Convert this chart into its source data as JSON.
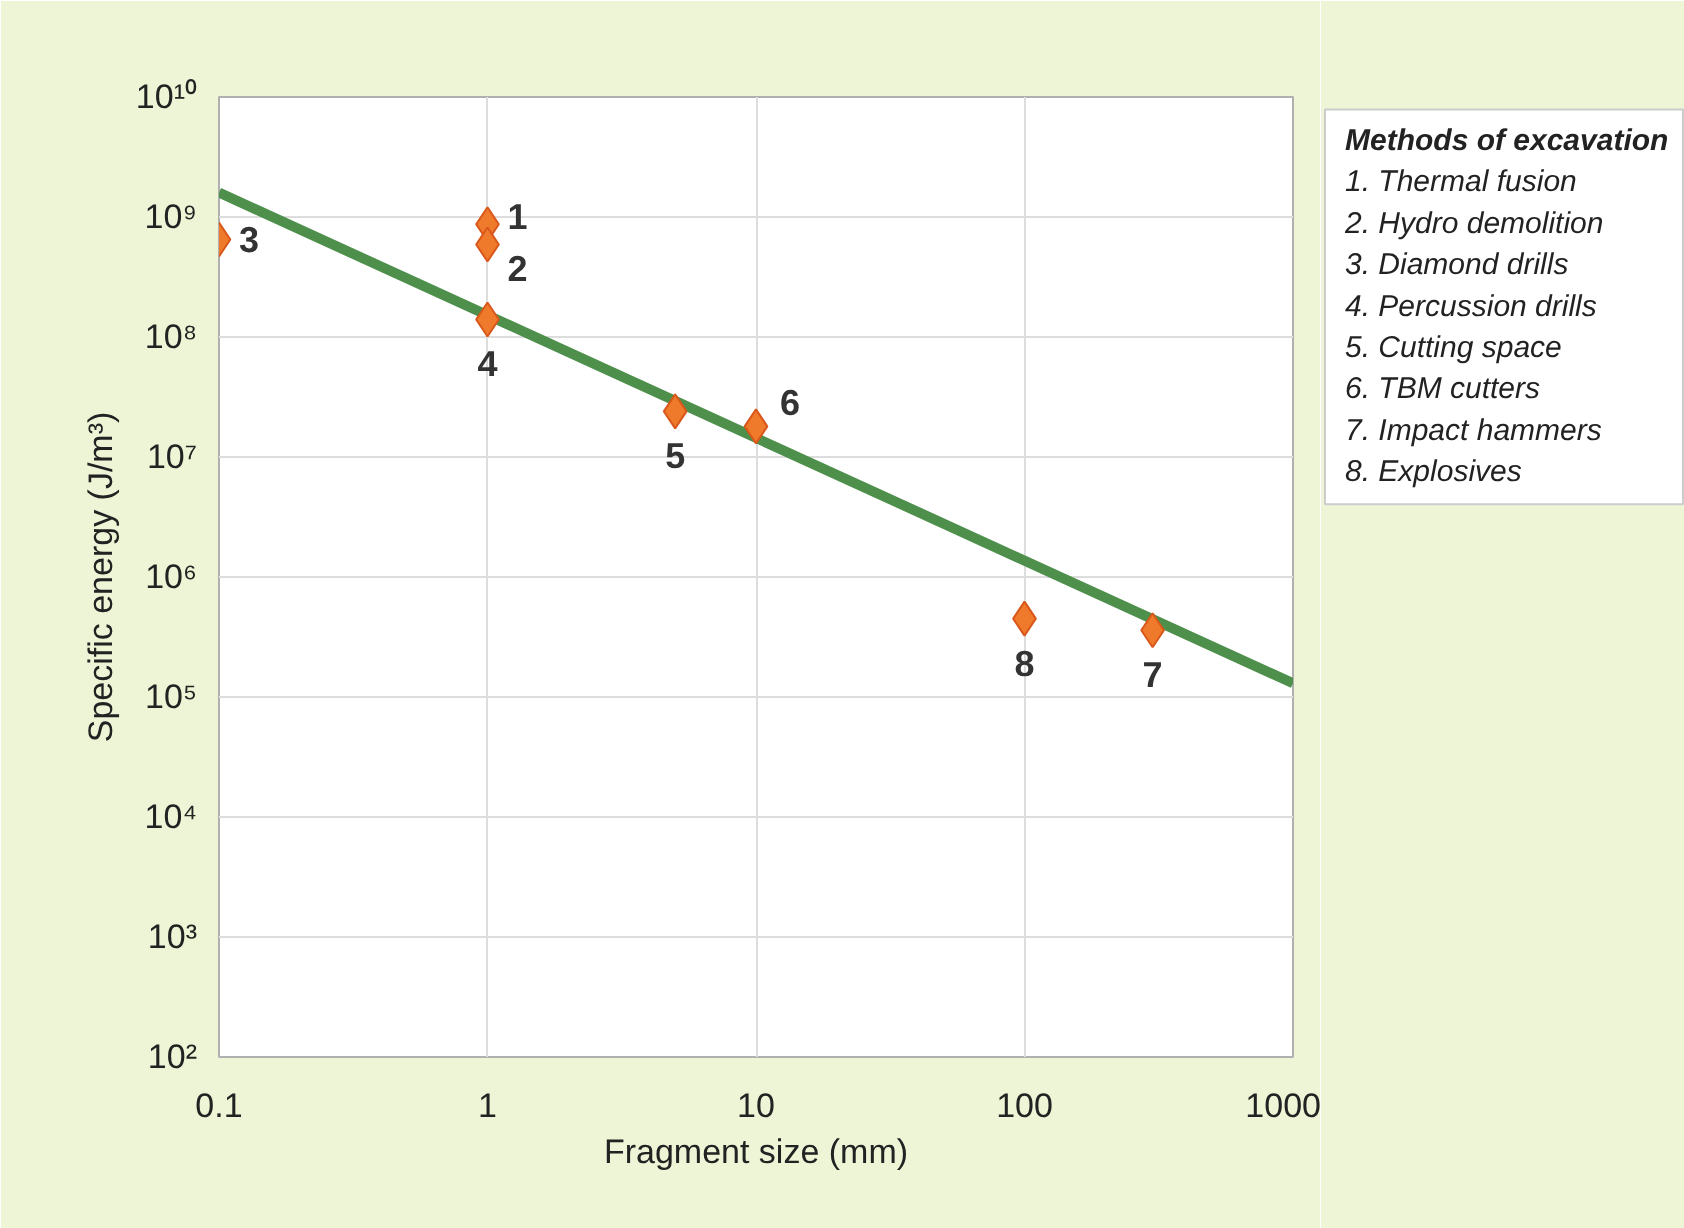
{
  "chart_data": {
    "type": "scatter",
    "xlabel": "Fragment size (mm)",
    "ylabel": "Specific energy (J/m³)",
    "log": "xy",
    "grid": true,
    "xlim": [
      0.1,
      1000
    ],
    "ylim": [
      100,
      10000000000
    ],
    "xticks": [
      0.1,
      1,
      10,
      100,
      1000
    ],
    "yticks": [
      {
        "value": 100,
        "label": "10²"
      },
      {
        "value": 1000,
        "label": "10³"
      },
      {
        "value": 10000,
        "label": "10⁴"
      },
      {
        "value": 100000,
        "label": "10⁵"
      },
      {
        "value": 1000000,
        "label": "10⁶"
      },
      {
        "value": 10000000,
        "label": "10⁷"
      },
      {
        "value": 100000000,
        "label": "10⁸"
      },
      {
        "value": 1000000000,
        "label": "10⁹"
      },
      {
        "value": 10000000000,
        "label": "10¹⁰"
      }
    ],
    "legend_title": "Methods of excavation",
    "annotations": [
      "1. Thermal fusion",
      "2. Hydro demolition",
      "3. Diamond drills",
      "4. Percussion drills",
      "5. Cutting space",
      "6. TBM cutters",
      "7. Impact hammers",
      "8. Explosives",
      {
        "text": "1",
        "x": 1,
        "y": 870000000
      },
      {
        "text": "2",
        "x": 1,
        "y": 590000000
      },
      {
        "text": "3",
        "x": 0.1,
        "y": 650000000
      },
      {
        "text": "4",
        "x": 1,
        "y": 140000000
      },
      {
        "text": "5",
        "x": 5,
        "y": 24000000
      },
      {
        "text": "6",
        "x": 10,
        "y": 18000000
      },
      {
        "text": "7",
        "x": 300,
        "y": 360000
      },
      {
        "text": "8",
        "x": 100,
        "y": 450000
      }
    ],
    "series": [
      {
        "type": "line",
        "color": "#4e8f4c",
        "x": [
          0.1,
          1000
        ],
        "values": [
          1600000000,
          130000
        ]
      },
      {
        "color": "#ef7a2b",
        "marker": "diamond",
        "x": [
          1,
          1,
          0.1,
          1,
          5,
          10,
          300,
          100
        ],
        "values": [
          870000000,
          590000000,
          650000000,
          140000000,
          24000000,
          18000000,
          360000,
          450000
        ]
      }
    ]
  }
}
